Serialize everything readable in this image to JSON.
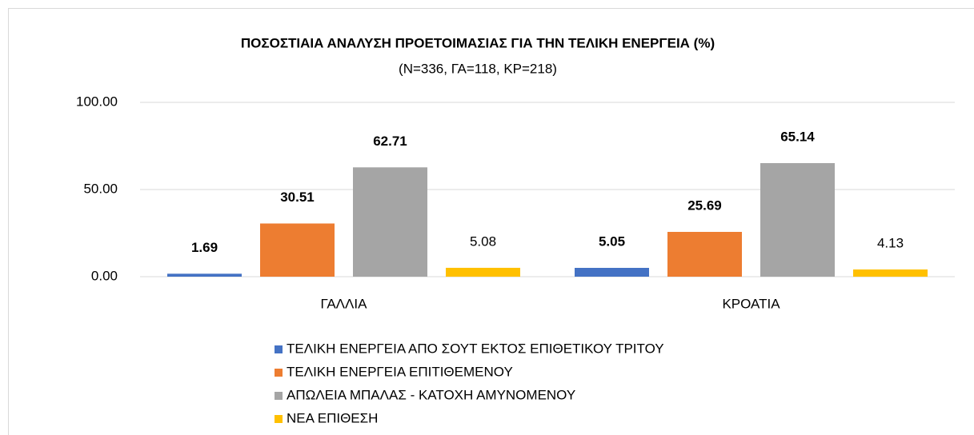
{
  "chart_data": {
    "type": "bar",
    "title": "ΠΟΣΟΣΤΙΑΙΑ ΑΝΑΛΥΣΗ ΠΡΟΕΤΟΙΜΑΣΙΑΣ ΓΙΑ ΤΗΝ ΤΕΛΙΚΗ ΕΝΕΡΓΕΙΑ (%)",
    "subtitle": "(N=336, ΓΑ=118, ΚΡ=218)",
    "categories": [
      "ΓΑΛΛΙΑ",
      "ΚΡΟΑΤΙΑ"
    ],
    "series": [
      {
        "name": "ΤΕΛΙΚΗ ΕΝΕΡΓΕΙΑ ΑΠΟ ΣΟΥΤ ΕΚΤΟΣ ΕΠΙΘΕΤΙΚΟΥ ΤΡΙΤΟΥ",
        "color": "#4472c4",
        "values": [
          1.69,
          5.05
        ]
      },
      {
        "name": "ΤΕΛΙΚΗ ΕΝΕΡΓΕΙΑ ΕΠΙΤΙΘΕΜΕΝΟΥ",
        "color": "#ed7d31",
        "values": [
          30.51,
          25.69
        ]
      },
      {
        "name": "ΑΠΩΛΕΙΑ ΜΠΑΛΑΣ - ΚΑΤΟΧΗ ΑΜΥΝΟΜΕΝΟΥ",
        "color": "#a5a5a5",
        "values": [
          62.71,
          65.14
        ]
      },
      {
        "name": "ΝΕΑ ΕΠΙΘΕΣΗ",
        "color": "#ffc000",
        "values": [
          5.08,
          4.13
        ]
      }
    ],
    "ylim": [
      0,
      100
    ],
    "yticks": [
      {
        "value": 0,
        "label": "0.00"
      },
      {
        "value": 50,
        "label": "50.00"
      },
      {
        "value": 100,
        "label": "100.00"
      }
    ],
    "grid": true,
    "legend": "bottom"
  }
}
